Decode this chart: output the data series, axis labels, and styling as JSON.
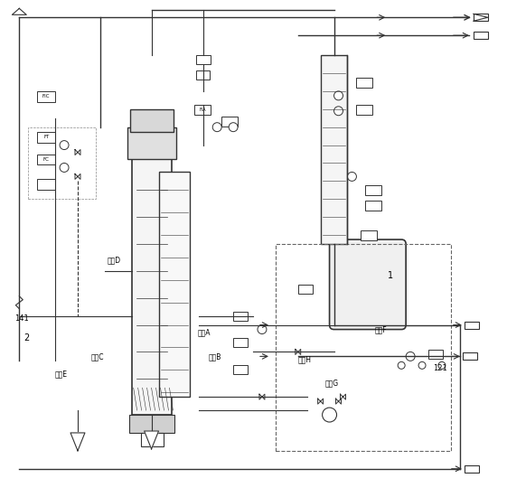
{
  "bg_color": "#ffffff",
  "line_color": "#333333",
  "dashed_color": "#555555",
  "title": "",
  "labels": {
    "pipe_a": "管道A",
    "pipe_b": "管道B",
    "pipe_c": "管道C",
    "pipe_d": "管道D",
    "pipe_e": "管道E",
    "pipe_f": "管道F",
    "pipe_g": "管道G",
    "pipe_h": "管道H",
    "label_1": "1",
    "label_2": "2",
    "label_141": "141",
    "label_121": "121"
  },
  "figsize": [
    5.61,
    5.5
  ],
  "dpi": 100
}
